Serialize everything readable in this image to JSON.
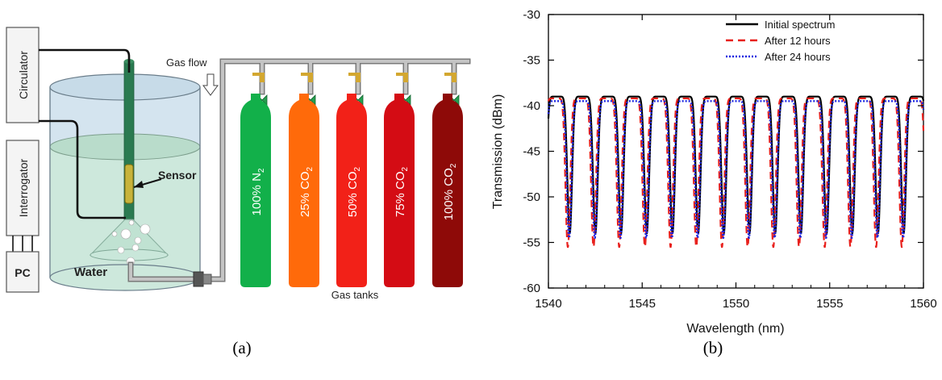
{
  "panel_a": {
    "caption": "(a)",
    "labels": {
      "circulator": "Circulator",
      "interrogator": "Interrogator",
      "pc": "PC",
      "water": "Water",
      "sensor": "Sensor",
      "gas_flow": "Gas flow",
      "gas_tanks": "Gas tanks"
    },
    "tanks": [
      {
        "pct": "100%",
        "main": "N",
        "sub": "2",
        "color": "#12b04a"
      },
      {
        "pct": "25%",
        "main": "CO",
        "sub": "2",
        "color": "#ff6a0a"
      },
      {
        "pct": "50%",
        "main": "CO",
        "sub": "2",
        "color": "#f22118"
      },
      {
        "pct": "75%",
        "main": "CO",
        "sub": "2",
        "color": "#d40c14"
      },
      {
        "pct": "100%",
        "main": "CO",
        "sub": "2",
        "color": "#8e0a08"
      }
    ],
    "colors": {
      "water": "#cde8dc",
      "air": "#d4e4ef",
      "pipe": "#b4b4b4",
      "sensor": "#c8b43a",
      "fiber_tube": "#2a7a50",
      "valve_handle": "#d3a730",
      "valve": "#26a050"
    }
  },
  "panel_b": {
    "caption": "(b)",
    "chart_data": {
      "type": "line",
      "title": "",
      "xlabel": "Wavelength (nm)",
      "ylabel": "Transmission (dBm)",
      "xlim": [
        1540,
        1560
      ],
      "ylim": [
        -60,
        -30
      ],
      "xticks": [
        "1540",
        "1545",
        "1550",
        "1555",
        "1560"
      ],
      "yticks": [
        "-30",
        "-35",
        "-40",
        "-45",
        "-50",
        "-55",
        "-60"
      ],
      "legend_position": "top-right",
      "fringe_spacing_nm": 1.37,
      "series": [
        {
          "name": "Initial spectrum",
          "color": "#000000",
          "dash": "solid",
          "max": -39.0,
          "min": -54.0,
          "phase_nm": 1540.45
        },
        {
          "name": "After 12 hours",
          "color": "#e8201c",
          "dash": "dashed",
          "max": -39.2,
          "min": -55.5,
          "phase_nm": 1540.35
        },
        {
          "name": "After 24 hours",
          "color": "#1c24e0",
          "dash": "dotted",
          "max": -39.5,
          "min": -54.5,
          "phase_nm": 1540.42
        }
      ]
    }
  }
}
